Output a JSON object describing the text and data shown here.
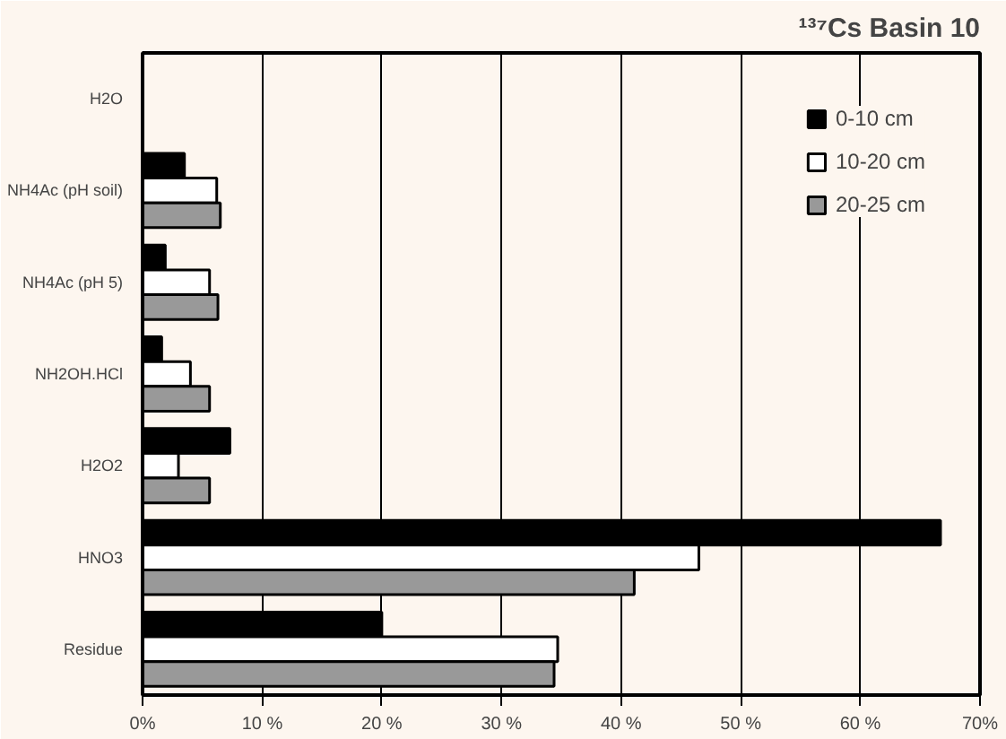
{
  "chart_data": {
    "type": "bar",
    "orientation": "horizontal",
    "title": "¹³⁷Cs Basin 10",
    "categories": [
      "H2O",
      "NH4Ac (pH soil)",
      "NH4Ac (pH 5)",
      "NH2OH.HCl",
      "H2O2",
      "HNO3",
      "Residue"
    ],
    "series": [
      {
        "name": "0-10 cm",
        "color": "#000000",
        "values": [
          null,
          3.5,
          1.9,
          1.6,
          7.3,
          66.7,
          20
        ]
      },
      {
        "name": "10-20 cm",
        "color": "#ffffff",
        "values": [
          null,
          6.2,
          5.6,
          4.0,
          3.0,
          46.5,
          34.7
        ]
      },
      {
        "name": "20-25 cm",
        "color": "#999999",
        "values": [
          null,
          6.5,
          6.3,
          5.6,
          5.6,
          41.1,
          34.4
        ]
      }
    ],
    "xlim": [
      0,
      70
    ],
    "xticks": [
      {
        "value": 0,
        "label": "0%"
      },
      {
        "value": 10,
        "label": "10 %"
      },
      {
        "value": 20,
        "label": "20 %"
      },
      {
        "value": 30,
        "label": "30 %"
      },
      {
        "value": 40,
        "label": "40 %"
      },
      {
        "value": 50,
        "label": "50 %"
      },
      {
        "value": 60,
        "label": "60 %"
      },
      {
        "value": 70,
        "label": "70%"
      }
    ],
    "grid": "x",
    "legend": "top right"
  }
}
